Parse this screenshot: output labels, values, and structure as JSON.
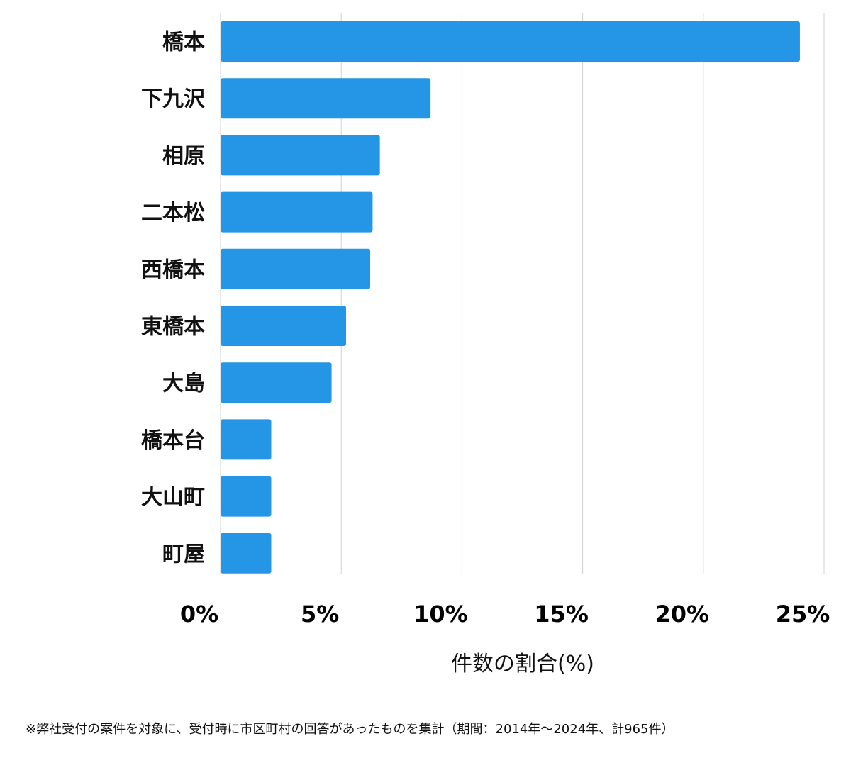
{
  "chart_data": {
    "type": "bar",
    "orientation": "horizontal",
    "categories": [
      "橋本",
      "下九沢",
      "相原",
      "二本松",
      "西橋本",
      "東橋本",
      "大島",
      "橋本台",
      "大山町",
      "町屋"
    ],
    "values": [
      24.0,
      8.7,
      6.6,
      6.3,
      6.2,
      5.2,
      4.6,
      2.1,
      2.1,
      2.1
    ],
    "xlim": [
      0,
      25
    ],
    "xticks": [
      0,
      5,
      10,
      15,
      20,
      25
    ],
    "xtick_labels": [
      "0%",
      "5%",
      "10%",
      "15%",
      "20%",
      "25%"
    ],
    "xlabel": "件数の割合(%)",
    "ylabel": "",
    "title": "",
    "grid": "vertical",
    "bar_color": "#2596e6"
  },
  "footnote": "※弊社受付の案件を対象に、受付時に市区町村の回答があったものを集計（期間：2014年～2024年、計965件）"
}
